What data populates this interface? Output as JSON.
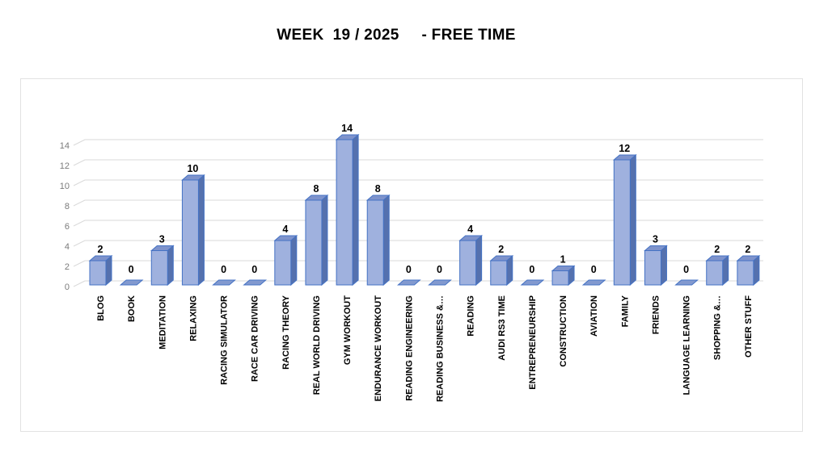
{
  "title": "WEEK  19 / 2025     - FREE TIME",
  "chart_data": {
    "type": "bar",
    "style": "3d-cylinder-excel",
    "title": "WEEK  19 / 2025     - FREE TIME",
    "categories": [
      "BLOG",
      "BOOK",
      "MEDITATION",
      "RELAXING",
      "RACING SIMULATOR",
      "RACE CAR DRIVING",
      "RACING THEORY",
      "REAL WORLD DRIVING",
      "GYM WORKOUT",
      "ENDURANCE WORKOUT",
      "READING ENGINEERING",
      "READING BUSINESS &…",
      "READING",
      "AUDI RS3 TIME",
      "ENTREPRENEURSHIP",
      "CONSTRUCTION",
      "AVIATION",
      "FAMILY",
      "FRIENDS",
      "LANGUAGE LEARNING",
      "SHOPPING &…",
      "OTHER STUFF"
    ],
    "values": [
      2,
      0,
      3,
      10,
      0,
      0,
      4,
      8,
      14,
      8,
      0,
      0,
      4,
      2,
      0,
      1,
      0,
      12,
      3,
      0,
      2,
      2
    ],
    "value_labels_shown": true,
    "xlabel": "",
    "ylabel": "",
    "ylim": [
      0,
      14
    ],
    "yticks": [
      0,
      2,
      4,
      6,
      8,
      10,
      12,
      14
    ],
    "grid": true,
    "legend": "none",
    "colors": {
      "bar_front": "#9FB1DE",
      "bar_side": "#5571AE",
      "bar_top": "#7E93CC",
      "bar_zero": "#8299CF",
      "bar_border": "#4472C4",
      "gridline": "#D9D9D9",
      "axis_tick_label": "#7A7A7A",
      "value_label": "#000000",
      "category_label": "#000000",
      "title_color": "#000000",
      "chart_border": "#E2E2E2",
      "background": "#FFFFFF"
    }
  }
}
